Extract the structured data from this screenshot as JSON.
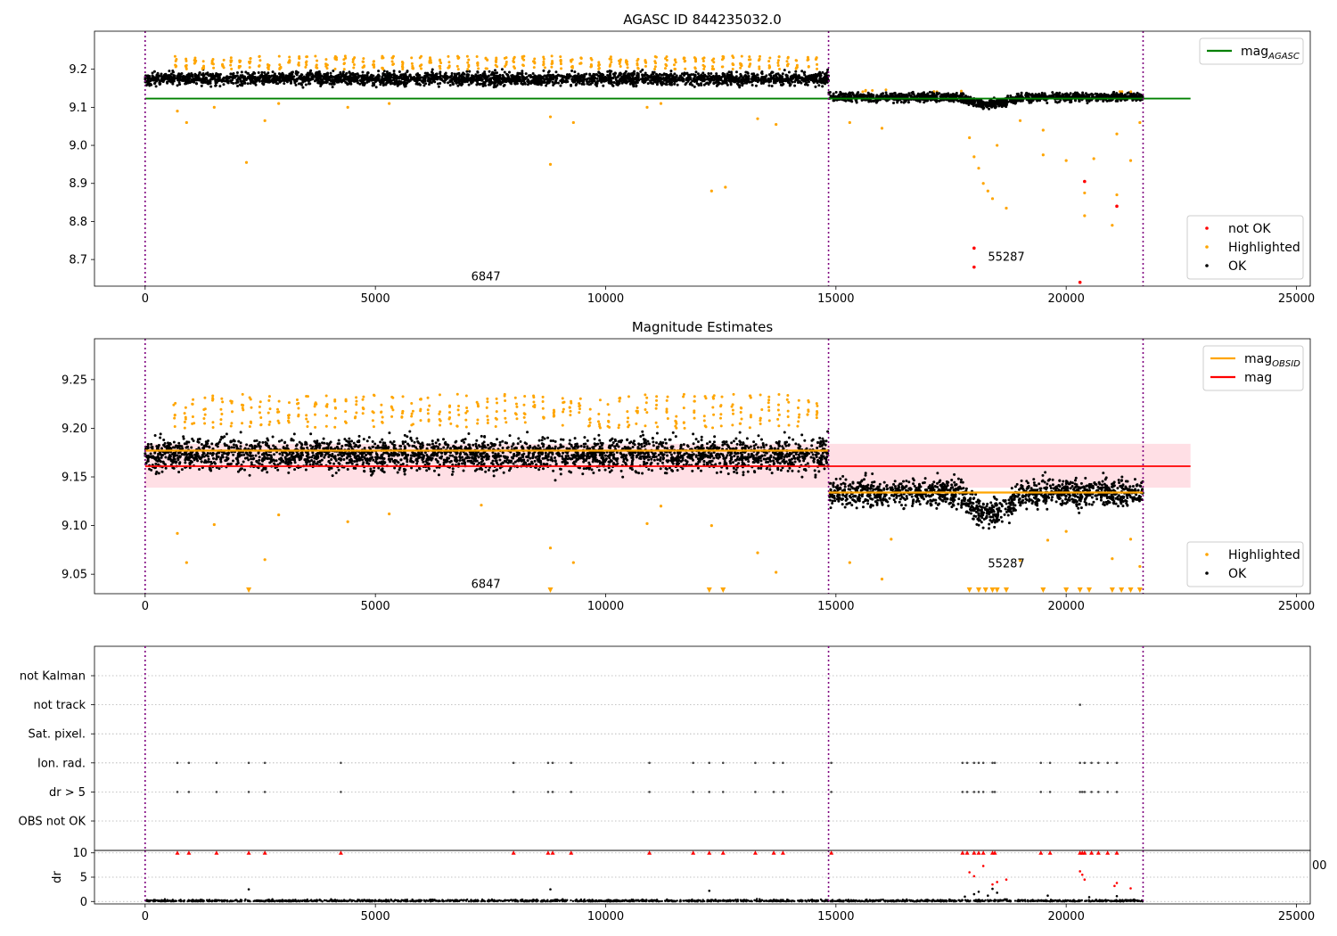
{
  "figure": {
    "colors": {
      "ok": "#000000",
      "highlighted": "#FFA500",
      "not_ok": "#FF0000",
      "agasc": "#008000",
      "obsid": "#FFA500",
      "mag": "#FF0000",
      "band": "#FFC0CB",
      "vline": "#800080",
      "grid": "#B0B0B0"
    }
  },
  "chart_data": [
    {
      "type": "scatter",
      "title": "AGASC ID 844235032.0",
      "xlim": [
        -1100,
        25300
      ],
      "ylim": [
        8.63,
        9.3
      ],
      "xticks": [
        0,
        5000,
        10000,
        15000,
        20000,
        25000
      ],
      "yticks": [
        8.7,
        8.8,
        8.9,
        9.0,
        9.1,
        9.2
      ],
      "vlines": [
        0,
        14840,
        21670
      ],
      "hline": {
        "y": 9.123,
        "x0": 0,
        "x1": 22700
      },
      "segments": [
        {
          "x0": 0,
          "x1": 14840,
          "center": 9.175,
          "spread": 0.012,
          "high": 9.2
        },
        {
          "x0": 14840,
          "x1": 21670,
          "center": 9.127,
          "spread": 0.009,
          "high": 9.14
        }
      ],
      "dip": {
        "x0": 17700,
        "x1": 19000,
        "depth": 0.018
      },
      "annotations": [
        {
          "x": 7400,
          "y": 8.645,
          "text": "6847"
        },
        {
          "x": 18700,
          "y": 8.697,
          "text": "55287"
        }
      ],
      "outliers_highlighted": [
        [
          700,
          9.09
        ],
        [
          900,
          9.06
        ],
        [
          1500,
          9.1
        ],
        [
          2200,
          8.955
        ],
        [
          2600,
          9.065
        ],
        [
          2900,
          9.11
        ],
        [
          4400,
          9.1
        ],
        [
          5300,
          9.11
        ],
        [
          8800,
          9.075
        ],
        [
          8800,
          8.95
        ],
        [
          9300,
          9.06
        ],
        [
          10900,
          9.1
        ],
        [
          11200,
          9.11
        ],
        [
          12300,
          8.88
        ],
        [
          12600,
          8.89
        ],
        [
          13300,
          9.07
        ],
        [
          13700,
          9.055
        ],
        [
          15300,
          9.06
        ],
        [
          16000,
          9.045
        ],
        [
          17900,
          9.02
        ],
        [
          18000,
          8.97
        ],
        [
          18100,
          8.94
        ],
        [
          18200,
          8.9
        ],
        [
          18300,
          8.88
        ],
        [
          18400,
          8.86
        ],
        [
          18500,
          9.0
        ],
        [
          18700,
          8.835
        ],
        [
          19000,
          9.065
        ],
        [
          19500,
          9.04
        ],
        [
          19500,
          8.975
        ],
        [
          20000,
          8.96
        ],
        [
          20400,
          8.875
        ],
        [
          20400,
          8.815
        ],
        [
          20600,
          8.965
        ],
        [
          21000,
          8.79
        ],
        [
          21100,
          8.87
        ],
        [
          21100,
          9.03
        ],
        [
          21400,
          8.96
        ],
        [
          21600,
          9.06
        ]
      ],
      "outliers_not_ok": [
        [
          18000,
          8.73
        ],
        [
          18000,
          8.68
        ],
        [
          20300,
          8.64
        ],
        [
          20400,
          8.905
        ],
        [
          21100,
          8.84
        ]
      ],
      "legends": [
        {
          "position": "upper-right",
          "entries": [
            {
              "kind": "line",
              "color": "agasc",
              "label": "mag",
              "sub": "AGASC"
            }
          ]
        },
        {
          "position": "lower-right",
          "entries": [
            {
              "kind": "dot",
              "color": "not_ok",
              "label": "not OK"
            },
            {
              "kind": "dot",
              "color": "highlighted",
              "label": "Highlighted"
            },
            {
              "kind": "dot",
              "color": "ok",
              "label": "OK"
            }
          ]
        }
      ]
    },
    {
      "type": "scatter",
      "title": "Magnitude Estimates",
      "xlim": [
        -1100,
        25300
      ],
      "ylim": [
        9.03,
        9.292
      ],
      "xticks": [
        0,
        5000,
        10000,
        15000,
        20000,
        25000
      ],
      "yticks": [
        9.05,
        9.1,
        9.15,
        9.2,
        9.25
      ],
      "vlines": [
        0,
        14840,
        21670
      ],
      "band": {
        "x0": 0,
        "x1": 22700,
        "y0": 9.139,
        "y1": 9.184
      },
      "hline": {
        "y": 9.161,
        "x0": 0,
        "x1": 22700
      },
      "obsid_steps": [
        {
          "x0": 0,
          "x1": 14840,
          "y": 9.177
        },
        {
          "x0": 14840,
          "x1": 21670,
          "y": 9.134
        }
      ],
      "segments": [
        {
          "x0": 0,
          "x1": 14840,
          "center": 9.173,
          "spread": 0.012,
          "high": 9.2
        },
        {
          "x0": 14840,
          "x1": 21670,
          "center": 9.134,
          "spread": 0.01,
          "high": 9.16
        }
      ],
      "dip": {
        "x0": 17700,
        "x1": 19000,
        "depth": 0.022
      },
      "annotations": [
        {
          "x": 7400,
          "y": 9.036,
          "text": "6847"
        },
        {
          "x": 18700,
          "y": 9.057,
          "text": "55287"
        }
      ],
      "outliers_highlighted": [
        [
          700,
          9.092
        ],
        [
          900,
          9.062
        ],
        [
          1500,
          9.101
        ],
        [
          2600,
          9.065
        ],
        [
          2900,
          9.111
        ],
        [
          4400,
          9.104
        ],
        [
          5300,
          9.112
        ],
        [
          7300,
          9.121
        ],
        [
          8800,
          9.077
        ],
        [
          9300,
          9.062
        ],
        [
          10900,
          9.102
        ],
        [
          11200,
          9.12
        ],
        [
          12300,
          9.1
        ],
        [
          13300,
          9.072
        ],
        [
          13700,
          9.052
        ],
        [
          15300,
          9.062
        ],
        [
          16000,
          9.045
        ],
        [
          16200,
          9.086
        ],
        [
          19000,
          9.064
        ],
        [
          19600,
          9.085
        ],
        [
          20000,
          9.094
        ],
        [
          21000,
          9.066
        ],
        [
          21400,
          9.086
        ],
        [
          21600,
          9.058
        ]
      ],
      "clipped_markers": [
        2250,
        8800,
        12250,
        12550,
        17900,
        18100,
        18250,
        18400,
        18500,
        18700,
        19500,
        20000,
        20300,
        20500,
        21000,
        21200,
        21400,
        21600
      ],
      "legends": [
        {
          "position": "upper-right",
          "entries": [
            {
              "kind": "line",
              "color": "obsid",
              "label": "mag",
              "sub": "OBSID"
            },
            {
              "kind": "line",
              "color": "mag",
              "label": "mag"
            }
          ]
        },
        {
          "position": "lower-right",
          "entries": [
            {
              "kind": "dot",
              "color": "highlighted",
              "label": "Highlighted"
            },
            {
              "kind": "dot",
              "color": "ok",
              "label": "OK"
            }
          ]
        }
      ]
    },
    {
      "type": "scatter",
      "title": "",
      "xlim": [
        -1100,
        25300
      ],
      "categories": [
        "not Kalman",
        "not track",
        "Sat. pixel.",
        "Ion. rad.",
        "dr > 5",
        "OBS not OK"
      ],
      "vlines": [
        0,
        14840,
        21670
      ],
      "flag_points": {
        "not track": [
          20300
        ],
        "Ion. rad.": [
          700,
          950,
          1550,
          2250,
          2600,
          4250,
          8000,
          8750,
          8850,
          9250,
          10950,
          11900,
          12250,
          12550,
          13250,
          13650,
          13850,
          14900,
          17750,
          17850,
          18000,
          18100,
          18200,
          18400,
          18450,
          19450,
          19650,
          20300,
          20400,
          20550,
          20700,
          20900,
          21100
        ],
        "dr > 5": [
          700,
          950,
          1550,
          2250,
          2600,
          4250,
          8000,
          8750,
          8850,
          9250,
          10950,
          11900,
          12250,
          12550,
          13250,
          13650,
          13850,
          14900,
          17750,
          17850,
          18000,
          18100,
          18200,
          18400,
          18450,
          19450,
          19650,
          20300,
          20350,
          20400,
          20550,
          20700,
          20900,
          21100
        ]
      },
      "side_label": "00"
    },
    {
      "type": "scatter",
      "title": "",
      "ylabel": "dr",
      "xlim": [
        -1100,
        25300
      ],
      "ylim": [
        -0.5,
        10.5
      ],
      "xticks": [
        0,
        5000,
        10000,
        15000,
        20000,
        25000
      ],
      "yticks": [
        0,
        5,
        10
      ],
      "vlines": [
        0,
        14840,
        21670
      ],
      "capped_markers": [
        700,
        950,
        1550,
        2250,
        2600,
        4250,
        8000,
        8750,
        8850,
        9250,
        10950,
        11900,
        12250,
        12550,
        13250,
        13650,
        13850,
        14900,
        17750,
        17850,
        18000,
        18100,
        18200,
        18400,
        18450,
        19450,
        19650,
        20300,
        20350,
        20400,
        20550,
        20700,
        20900,
        21100
      ],
      "red_points": [
        [
          17900,
          6
        ],
        [
          18000,
          5.2
        ],
        [
          18200,
          7.3
        ],
        [
          18400,
          3.5
        ],
        [
          18500,
          4
        ],
        [
          18700,
          4.5
        ],
        [
          20300,
          6.2
        ],
        [
          20350,
          5.5
        ],
        [
          20400,
          4.5
        ],
        [
          21050,
          3.2
        ],
        [
          21100,
          3.8
        ],
        [
          21400,
          2.7
        ]
      ],
      "black_points": [
        [
          2250,
          2.5
        ],
        [
          8800,
          2.5
        ],
        [
          12250,
          2.2
        ],
        [
          17800,
          1
        ],
        [
          18000,
          1.5
        ],
        [
          18100,
          2
        ],
        [
          18300,
          1.2
        ],
        [
          18400,
          2.6
        ],
        [
          18500,
          1.8
        ],
        [
          19600,
          1.2
        ],
        [
          20500,
          0.9
        ],
        [
          21100,
          1.1
        ]
      ]
    }
  ]
}
